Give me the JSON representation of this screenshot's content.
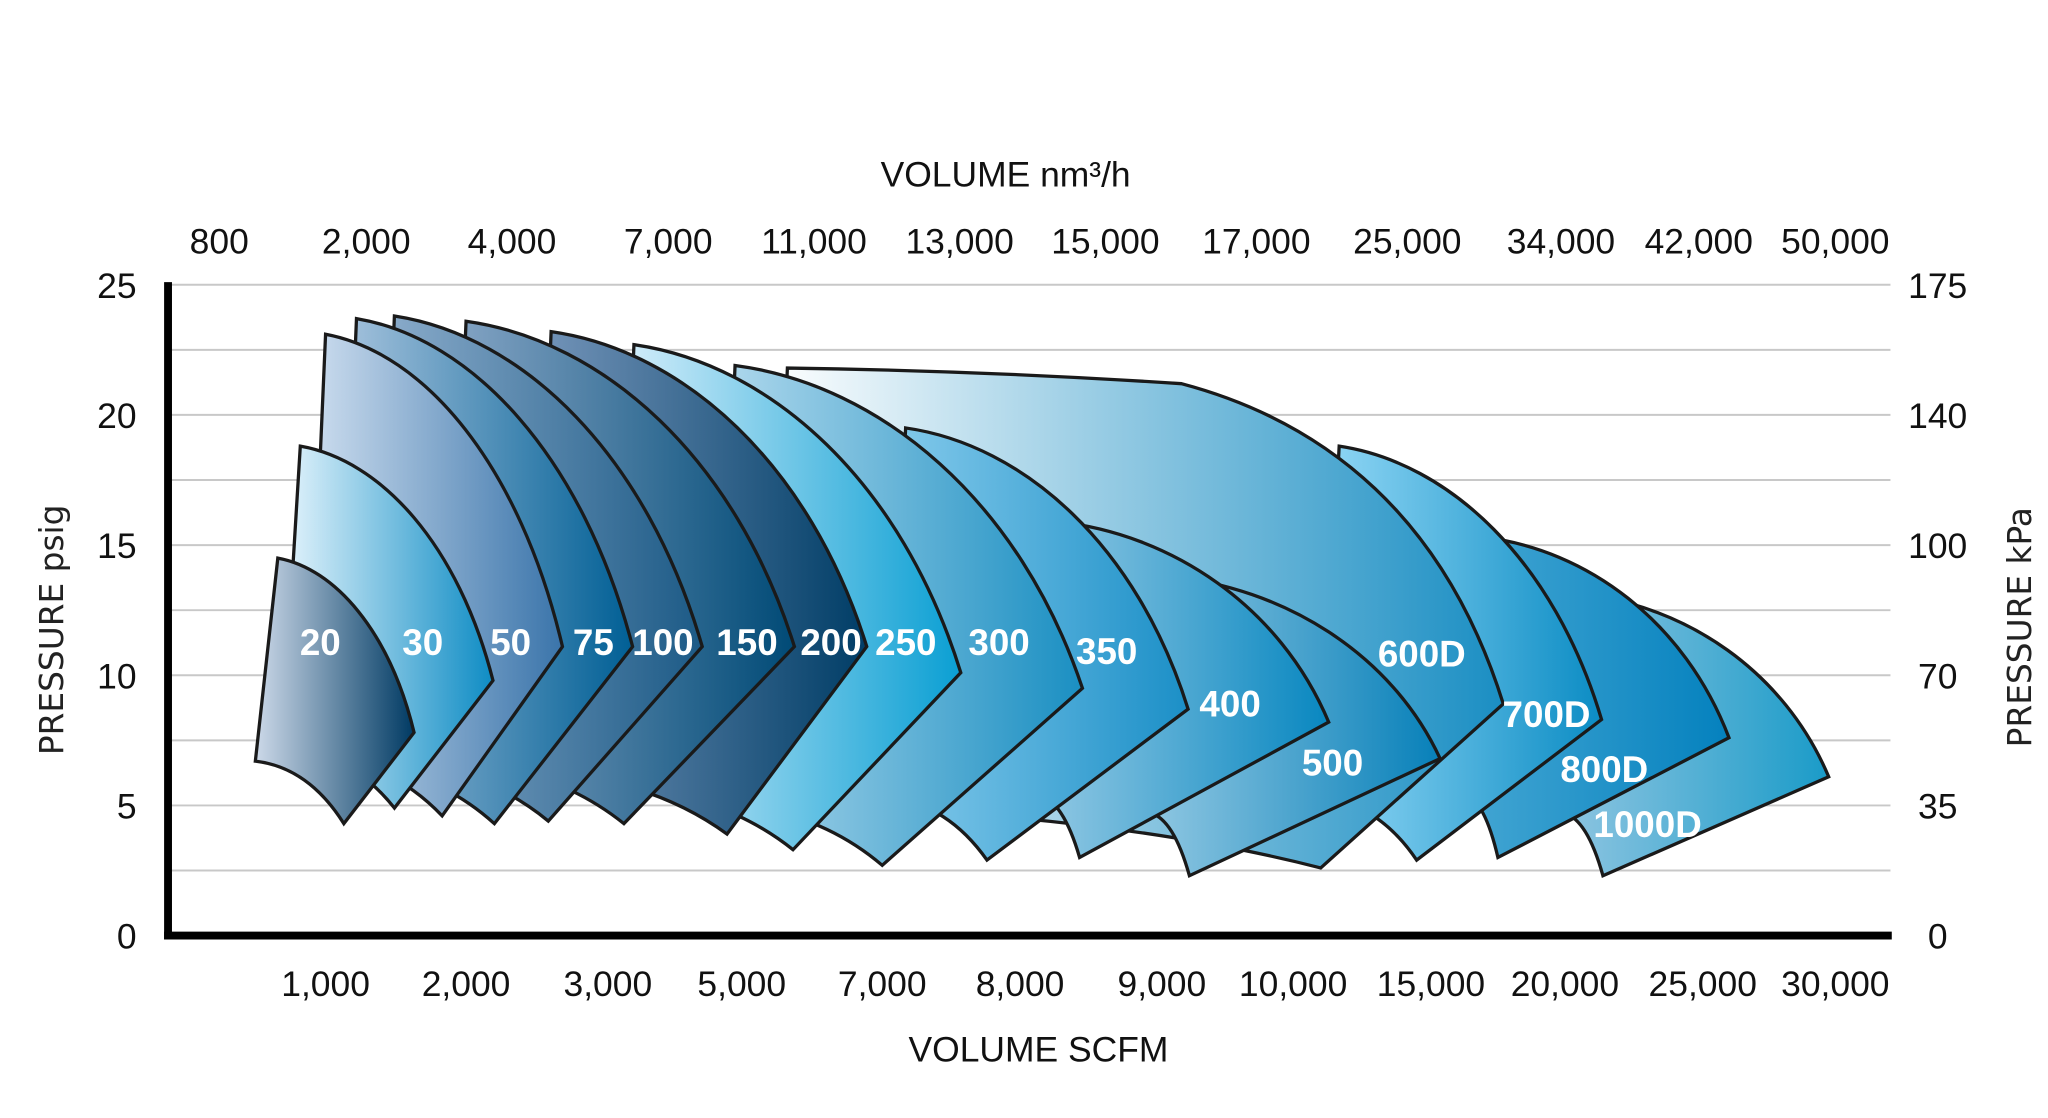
{
  "chart_data": {
    "type": "area",
    "top_axis": {
      "label": "VOLUME nm³/h",
      "ticks": [
        "800",
        "2,000",
        "4,000",
        "7,000",
        "11,000",
        "13,000",
        "15,000",
        "17,000",
        "25,000",
        "34,000",
        "42,000",
        "50,000"
      ]
    },
    "xlabel": "VOLUME SCFM",
    "x_ticks": [
      "1,000",
      "2,000",
      "3,000",
      "5,000",
      "7,000",
      "8,000",
      "9,000",
      "10,000",
      "15,000",
      "20,000",
      "25,000",
      "30,000"
    ],
    "x_tick_values": [
      1000,
      2000,
      3000,
      5000,
      7000,
      8000,
      9000,
      10000,
      15000,
      20000,
      25000,
      30000
    ],
    "x_scale": "non-uniform (categorical tick spacing)",
    "ylabel": "PRESSURE psig",
    "ylim": [
      0,
      25
    ],
    "y_ticks": [
      "0",
      "5",
      "10",
      "15",
      "20",
      "25"
    ],
    "y2label": "PRESSURE kPa",
    "y2_ticks": [
      "0",
      "35",
      "70",
      "100",
      "140",
      "175"
    ],
    "grid": "horizontal, every 2.5 psig",
    "series": [
      {
        "name": "20",
        "start": [
          500,
          6.7
        ],
        "top": [
          660,
          14.5
        ],
        "nose": [
          1630,
          7.8
        ],
        "bottom": [
          1130,
          4.3
        ],
        "colors": [
          "#cdd9e9",
          "#003a63"
        ]
      },
      {
        "name": "30",
        "top": [
          820,
          18.8
        ],
        "nose": [
          2190,
          9.8
        ],
        "bottom": [
          1490,
          4.9
        ],
        "colors": [
          "#e6f5fd",
          "#0e8cc4"
        ]
      },
      {
        "name": "50",
        "top": [
          1000,
          23.1
        ],
        "nose": [
          2680,
          11.1
        ],
        "bottom": [
          1830,
          4.6
        ],
        "colors": [
          "#cfdff0",
          "#3a74aa"
        ]
      },
      {
        "name": "75",
        "top": [
          1220,
          23.7
        ],
        "nose": [
          3370,
          11.1
        ],
        "bottom": [
          2200,
          4.3
        ],
        "colors": [
          "#a8c4de",
          "#005f95"
        ]
      },
      {
        "name": "100",
        "top": [
          1490,
          23.8
        ],
        "nose": [
          4410,
          11.1
        ],
        "bottom": [
          2580,
          4.4
        ],
        "colors": [
          "#8eaecd",
          "#1c5a86"
        ]
      },
      {
        "name": "150",
        "top": [
          2000,
          23.6
        ],
        "nose": [
          5750,
          11.1
        ],
        "bottom": [
          3240,
          4.3
        ],
        "colors": [
          "#87a6c6",
          "#004a76"
        ]
      },
      {
        "name": "200",
        "top": [
          2600,
          23.2
        ],
        "nose": [
          6780,
          11.1
        ],
        "bottom": [
          4780,
          3.9
        ],
        "colors": [
          "#7696bb",
          "#003d66"
        ]
      },
      {
        "name": "250",
        "top": [
          3390,
          22.7
        ],
        "nose": [
          7570,
          10.1
        ],
        "bottom": [
          5730,
          3.3
        ],
        "colors": [
          "#d8effb",
          "#0a9fd3"
        ]
      },
      {
        "name": "300",
        "top": [
          4900,
          21.9
        ],
        "nose": [
          8440,
          9.5
        ],
        "bottom": [
          7000,
          2.7
        ],
        "colors": [
          "#b2d9ed",
          "#1a8fc2"
        ]
      },
      {
        "name": "350",
        "top": [
          7170,
          19.5
        ],
        "nose": [
          9200,
          8.7
        ],
        "bottom": [
          7760,
          2.9
        ],
        "colors": [
          "#86cbec",
          "#1b8fc7"
        ]
      },
      {
        "name": "400",
        "top": [
          8260,
          15.9
        ],
        "nose": [
          11290,
          8.2
        ],
        "bottom": [
          8420,
          3.0
        ],
        "colors": [
          "#93c9e4",
          "#0887c0"
        ]
      },
      {
        "name": "500",
        "top": [
          9050,
          13.8
        ],
        "nose": [
          15340,
          6.8
        ],
        "bottom": [
          9210,
          2.3
        ],
        "colors": [
          "#8fc7e2",
          "#0780b9"
        ]
      },
      {
        "name": "600D",
        "top": [
          5650,
          21.8
        ],
        "plateau": [
          9150,
          21.2
        ],
        "nose": [
          17700,
          8.9
        ],
        "bottom": [
          11000,
          2.6
        ],
        "colors": [
          "#ffffff",
          "#1a8ec3"
        ]
      },
      {
        "name": "700D",
        "top": [
          11670,
          18.8
        ],
        "nose": [
          21330,
          8.3
        ],
        "bottom": [
          14480,
          2.9
        ],
        "colors": [
          "#93d8f6",
          "#0b8cc4"
        ]
      },
      {
        "name": "800D",
        "top": [
          16960,
          15.3
        ],
        "nose": [
          25990,
          7.6
        ],
        "bottom": [
          17500,
          3.0
        ],
        "colors": [
          "#44a6d3",
          "#0481be"
        ]
      },
      {
        "name": "1000D",
        "top": [
          20620,
          13.1
        ],
        "nose": [
          29750,
          6.1
        ],
        "bottom": [
          21380,
          2.3
        ],
        "colors": [
          "#8ec5e1",
          "#1a9bc8"
        ]
      }
    ]
  }
}
